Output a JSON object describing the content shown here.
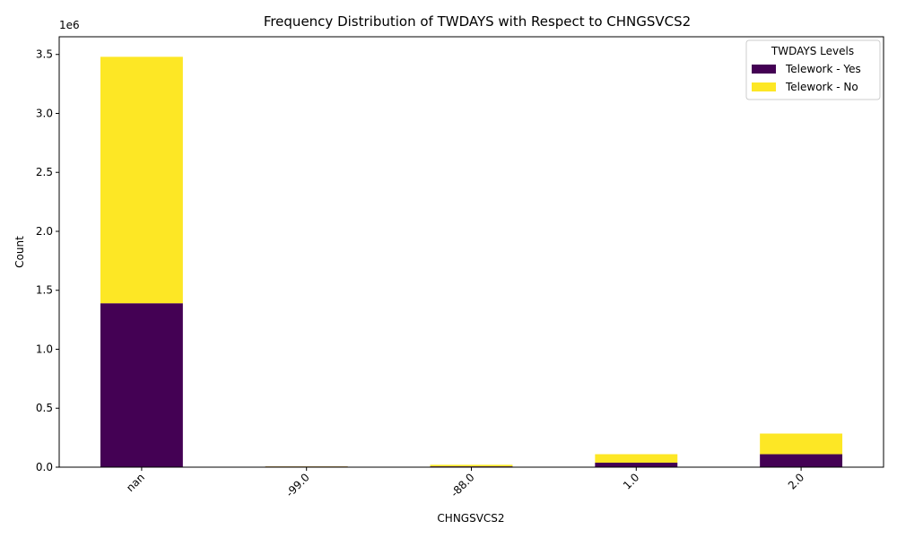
{
  "chart_data": {
    "type": "bar",
    "stacked": true,
    "title": "Frequency Distribution of TWDAYS with Respect to CHNGSVCS2",
    "xlabel": "CHNGSVCS2",
    "ylabel": "Count",
    "y_offset_text": "1e6",
    "categories": [
      "nan",
      "-99.0",
      "-88.0",
      "1.0",
      "2.0"
    ],
    "series": [
      {
        "name": "Telework - Yes",
        "color": "#440154",
        "values": [
          1390000,
          6000,
          7000,
          38000,
          110000
        ]
      },
      {
        "name": "Telework - No",
        "color": "#fde725",
        "values": [
          2090000,
          2000,
          13000,
          72000,
          175000
        ]
      }
    ],
    "ylim": [
      0,
      3650000
    ],
    "yticks": [
      0,
      500000,
      1000000,
      1500000,
      2000000,
      2500000,
      3000000,
      3500000
    ],
    "ytick_labels": [
      "0.0",
      "0.5",
      "1.0",
      "1.5",
      "2.0",
      "2.5",
      "3.0",
      "3.5"
    ],
    "xtick_rotation": 45,
    "legend": {
      "title": "TWDAYS Levels",
      "placement": "top-right"
    },
    "grid": false
  }
}
